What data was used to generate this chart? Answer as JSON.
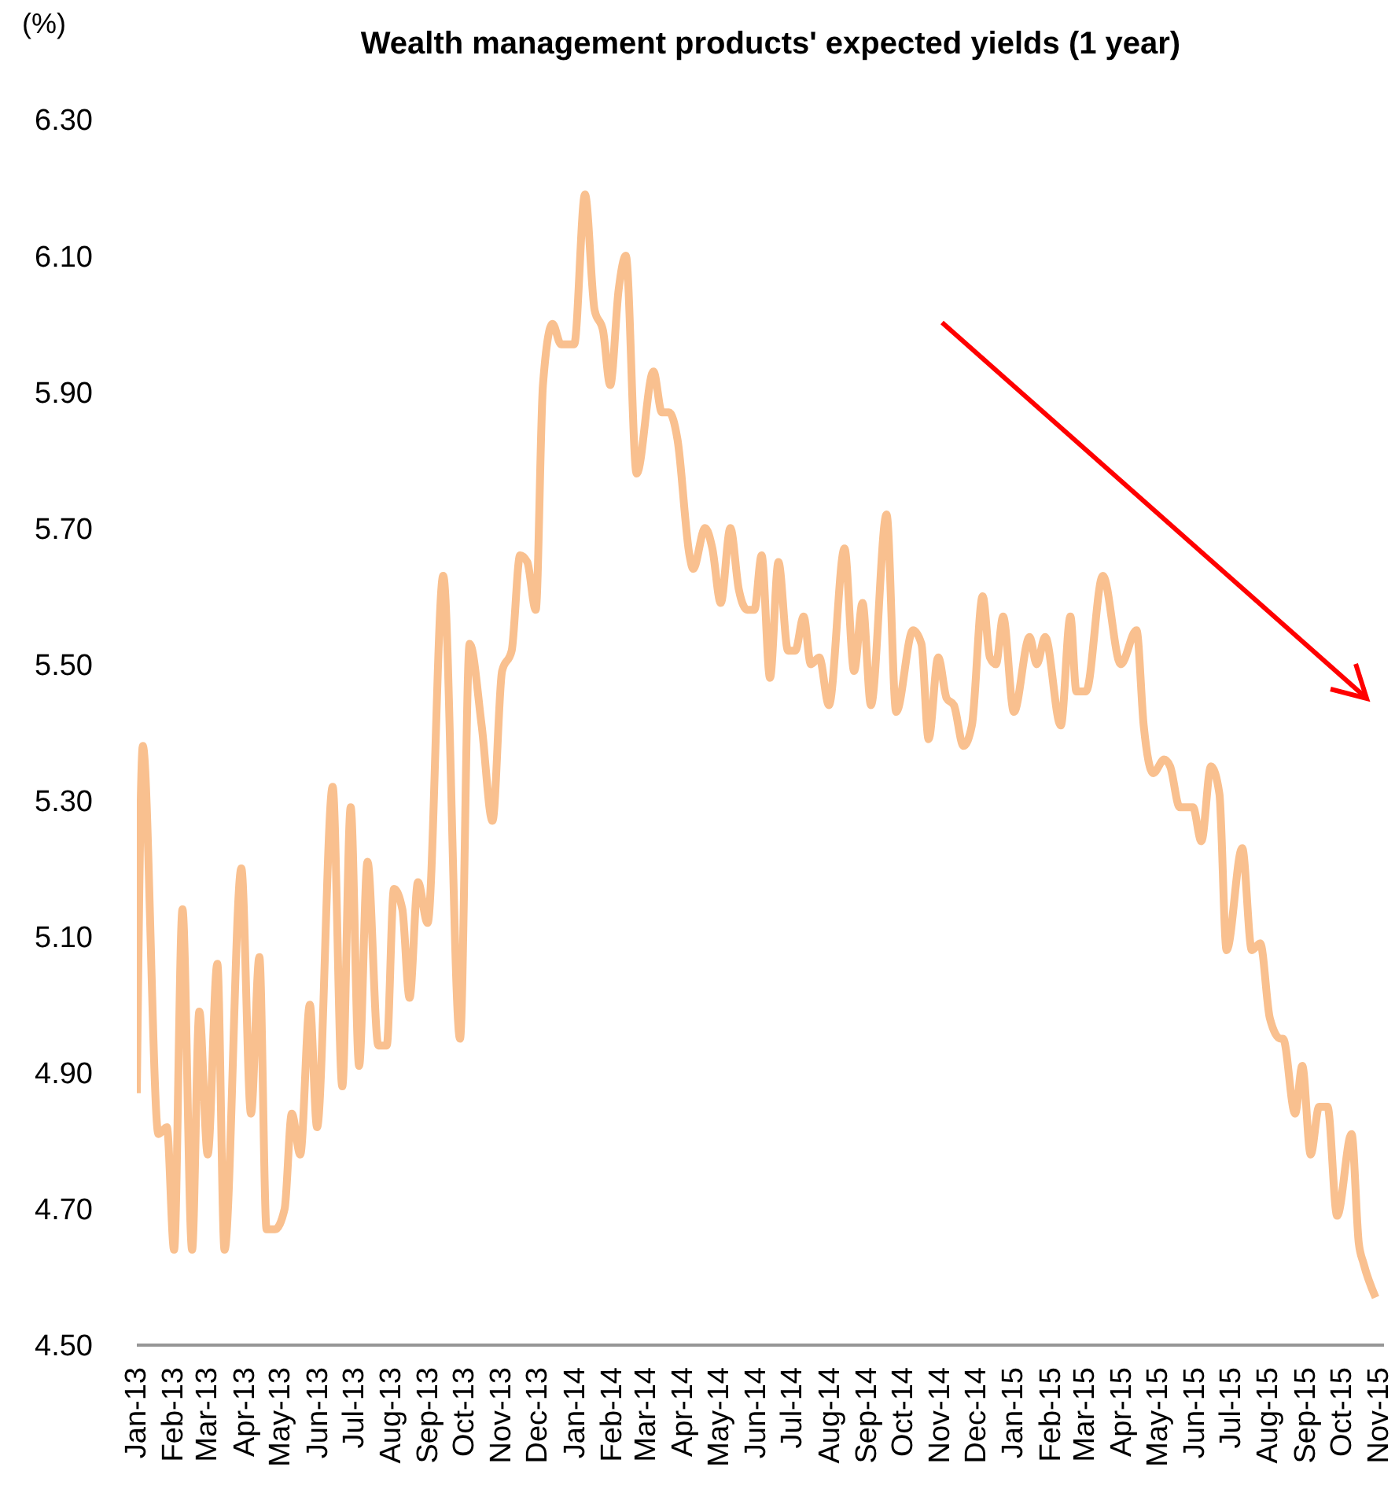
{
  "chart_data": {
    "type": "line",
    "title": "Wealth management products' expected yields (1 year)",
    "ylabel": "(%)",
    "color": "#f9c08f",
    "marker": "none",
    "x": [
      "2013-01-01",
      "2013-01-06",
      "2013-01-19",
      "2013-01-26",
      "2013-02-01",
      "2013-02-08",
      "2013-02-16",
      "2013-02-22",
      "2013-03-01",
      "2013-03-09",
      "2013-03-15",
      "2013-03-29",
      "2013-04-06",
      "2013-04-13",
      "2013-04-19",
      "2013-04-26",
      "2013-05-04",
      "2013-05-10",
      "2013-05-17",
      "2013-05-25",
      "2013-05-31",
      "2013-06-13",
      "2013-06-21",
      "2013-06-28",
      "2013-07-05",
      "2013-07-12",
      "2013-07-21",
      "2013-07-28",
      "2013-08-03",
      "2013-08-10",
      "2013-08-16",
      "2013-08-23",
      "2013-08-31",
      "2013-09-13",
      "2013-09-27",
      "2013-10-05",
      "2013-10-15",
      "2013-10-24",
      "2013-11-01",
      "2013-11-09",
      "2013-11-16",
      "2013-11-22",
      "2013-11-29",
      "2013-12-05",
      "2013-12-13",
      "2013-12-20",
      "2013-12-31",
      "2014-01-09",
      "2014-01-17",
      "2014-01-24",
      "2014-01-30",
      "2014-02-06",
      "2014-02-12",
      "2014-02-21",
      "2014-03-07",
      "2014-03-14",
      "2014-03-20",
      "2014-03-27",
      "2014-04-06",
      "2014-04-09",
      "2014-04-19",
      "2014-04-25",
      "2014-05-02",
      "2014-05-10",
      "2014-05-17",
      "2014-05-24",
      "2014-05-30",
      "2014-06-05",
      "2014-06-12",
      "2014-06-19",
      "2014-06-27",
      "2014-07-03",
      "2014-07-10",
      "2014-07-16",
      "2014-07-23",
      "2014-07-31",
      "2014-08-13",
      "2014-08-21",
      "2014-08-28",
      "2014-09-04",
      "2014-09-17",
      "2014-09-25",
      "2014-10-09",
      "2014-10-16",
      "2014-10-22",
      "2014-10-30",
      "2014-11-06",
      "2014-11-12",
      "2014-11-20",
      "2014-11-27",
      "2014-12-06",
      "2014-12-12",
      "2014-12-17",
      "2014-12-23",
      "2015-01-01",
      "2015-01-14",
      "2015-01-20",
      "2015-01-27",
      "2015-02-09",
      "2015-02-17",
      "2015-02-22",
      "2015-03-02",
      "2015-03-16",
      "2015-03-31",
      "2015-04-13",
      "2015-04-19",
      "2015-04-27",
      "2015-05-06",
      "2015-05-11",
      "2015-05-19",
      "2015-05-30",
      "2015-06-06",
      "2015-06-14",
      "2015-06-21",
      "2015-06-27",
      "2015-07-10",
      "2015-07-18",
      "2015-07-25",
      "2015-08-02",
      "2015-08-11",
      "2015-08-13",
      "2015-08-23",
      "2015-08-29",
      "2015-09-05",
      "2015-09-12",
      "2015-09-19",
      "2015-09-27",
      "2015-10-09",
      "2015-10-15",
      "2015-10-19",
      "2015-10-29"
    ],
    "values": [
      4.87,
      5.38,
      4.81,
      4.82,
      4.64,
      5.14,
      4.64,
      4.99,
      4.78,
      5.06,
      4.64,
      5.2,
      4.84,
      5.07,
      4.67,
      4.67,
      4.7,
      4.84,
      4.78,
      5.0,
      4.82,
      5.32,
      4.88,
      5.29,
      4.91,
      5.21,
      4.94,
      4.94,
      5.17,
      5.14,
      5.01,
      5.18,
      5.12,
      5.63,
      4.95,
      5.53,
      5.41,
      5.27,
      5.49,
      5.52,
      5.66,
      5.65,
      5.58,
      5.91,
      6.0,
      5.97,
      5.97,
      6.19,
      6.02,
      5.99,
      5.91,
      6.05,
      6.1,
      5.78,
      5.93,
      5.87,
      5.87,
      5.83,
      5.66,
      5.64,
      5.7,
      5.67,
      5.59,
      5.7,
      5.61,
      5.58,
      5.58,
      5.66,
      5.48,
      5.65,
      5.52,
      5.52,
      5.57,
      5.5,
      5.51,
      5.44,
      5.67,
      5.49,
      5.59,
      5.44,
      5.72,
      5.43,
      5.55,
      5.53,
      5.39,
      5.51,
      5.45,
      5.44,
      5.38,
      5.41,
      5.6,
      5.51,
      5.5,
      5.57,
      5.43,
      5.54,
      5.5,
      5.54,
      5.41,
      5.57,
      5.46,
      5.46,
      5.63,
      5.5,
      5.55,
      5.41,
      5.34,
      5.36,
      5.35,
      5.29,
      5.29,
      5.24,
      5.35,
      5.31,
      5.08,
      5.23,
      5.08,
      5.09,
      4.98,
      4.95,
      4.95,
      4.84,
      4.91,
      4.78,
      4.85,
      4.85,
      4.69,
      4.81,
      4.65,
      4.62,
      4.57
    ],
    "xlim": [
      "2013-01-01",
      "2015-11-05"
    ],
    "xticks": [
      {
        "value": "2013-01",
        "label": "Jan-13"
      },
      {
        "value": "2013-02",
        "label": "Feb-13"
      },
      {
        "value": "2013-03",
        "label": "Mar-13"
      },
      {
        "value": "2013-04",
        "label": "Apr-13"
      },
      {
        "value": "2013-05",
        "label": "May-13"
      },
      {
        "value": "2013-06",
        "label": "Jun-13"
      },
      {
        "value": "2013-07",
        "label": "Jul-13"
      },
      {
        "value": "2013-08",
        "label": "Aug-13"
      },
      {
        "value": "2013-09",
        "label": "Sep-13"
      },
      {
        "value": "2013-10",
        "label": "Oct-13"
      },
      {
        "value": "2013-11",
        "label": "Nov-13"
      },
      {
        "value": "2013-12",
        "label": "Dec-13"
      },
      {
        "value": "2014-01",
        "label": "Jan-14"
      },
      {
        "value": "2014-02",
        "label": "Feb-14"
      },
      {
        "value": "2014-03",
        "label": "Mar-14"
      },
      {
        "value": "2014-04",
        "label": "Apr-14"
      },
      {
        "value": "2014-05",
        "label": "May-14"
      },
      {
        "value": "2014-06",
        "label": "Jun-14"
      },
      {
        "value": "2014-07",
        "label": "Jul-14"
      },
      {
        "value": "2014-08",
        "label": "Aug-14"
      },
      {
        "value": "2014-09",
        "label": "Sep-14"
      },
      {
        "value": "2014-10",
        "label": "Oct-14"
      },
      {
        "value": "2014-11",
        "label": "Nov-14"
      },
      {
        "value": "2014-12",
        "label": "Dec-14"
      },
      {
        "value": "2015-01",
        "label": "Jan-15"
      },
      {
        "value": "2015-02",
        "label": "Feb-15"
      },
      {
        "value": "2015-03",
        "label": "Mar-15"
      },
      {
        "value": "2015-04",
        "label": "Apr-15"
      },
      {
        "value": "2015-05",
        "label": "May-15"
      },
      {
        "value": "2015-06",
        "label": "Jun-15"
      },
      {
        "value": "2015-07",
        "label": "Jul-15"
      },
      {
        "value": "2015-08",
        "label": "Aug-15"
      },
      {
        "value": "2015-09",
        "label": "Sep-15"
      },
      {
        "value": "2015-10",
        "label": "Oct-15"
      },
      {
        "value": "2015-11",
        "label": "Nov-15"
      }
    ],
    "ylim": [
      4.5,
      6.3
    ],
    "yticks": [
      {
        "value": 4.5,
        "label": "4.50"
      },
      {
        "value": 4.7,
        "label": "4.70"
      },
      {
        "value": 4.9,
        "label": "4.90"
      },
      {
        "value": 5.1,
        "label": "5.10"
      },
      {
        "value": 5.3,
        "label": "5.30"
      },
      {
        "value": 5.5,
        "label": "5.50"
      },
      {
        "value": 5.7,
        "label": "5.70"
      },
      {
        "value": 5.9,
        "label": "5.90"
      },
      {
        "value": 6.1,
        "label": "6.10"
      },
      {
        "value": 6.3,
        "label": "6.30"
      }
    ]
  }
}
